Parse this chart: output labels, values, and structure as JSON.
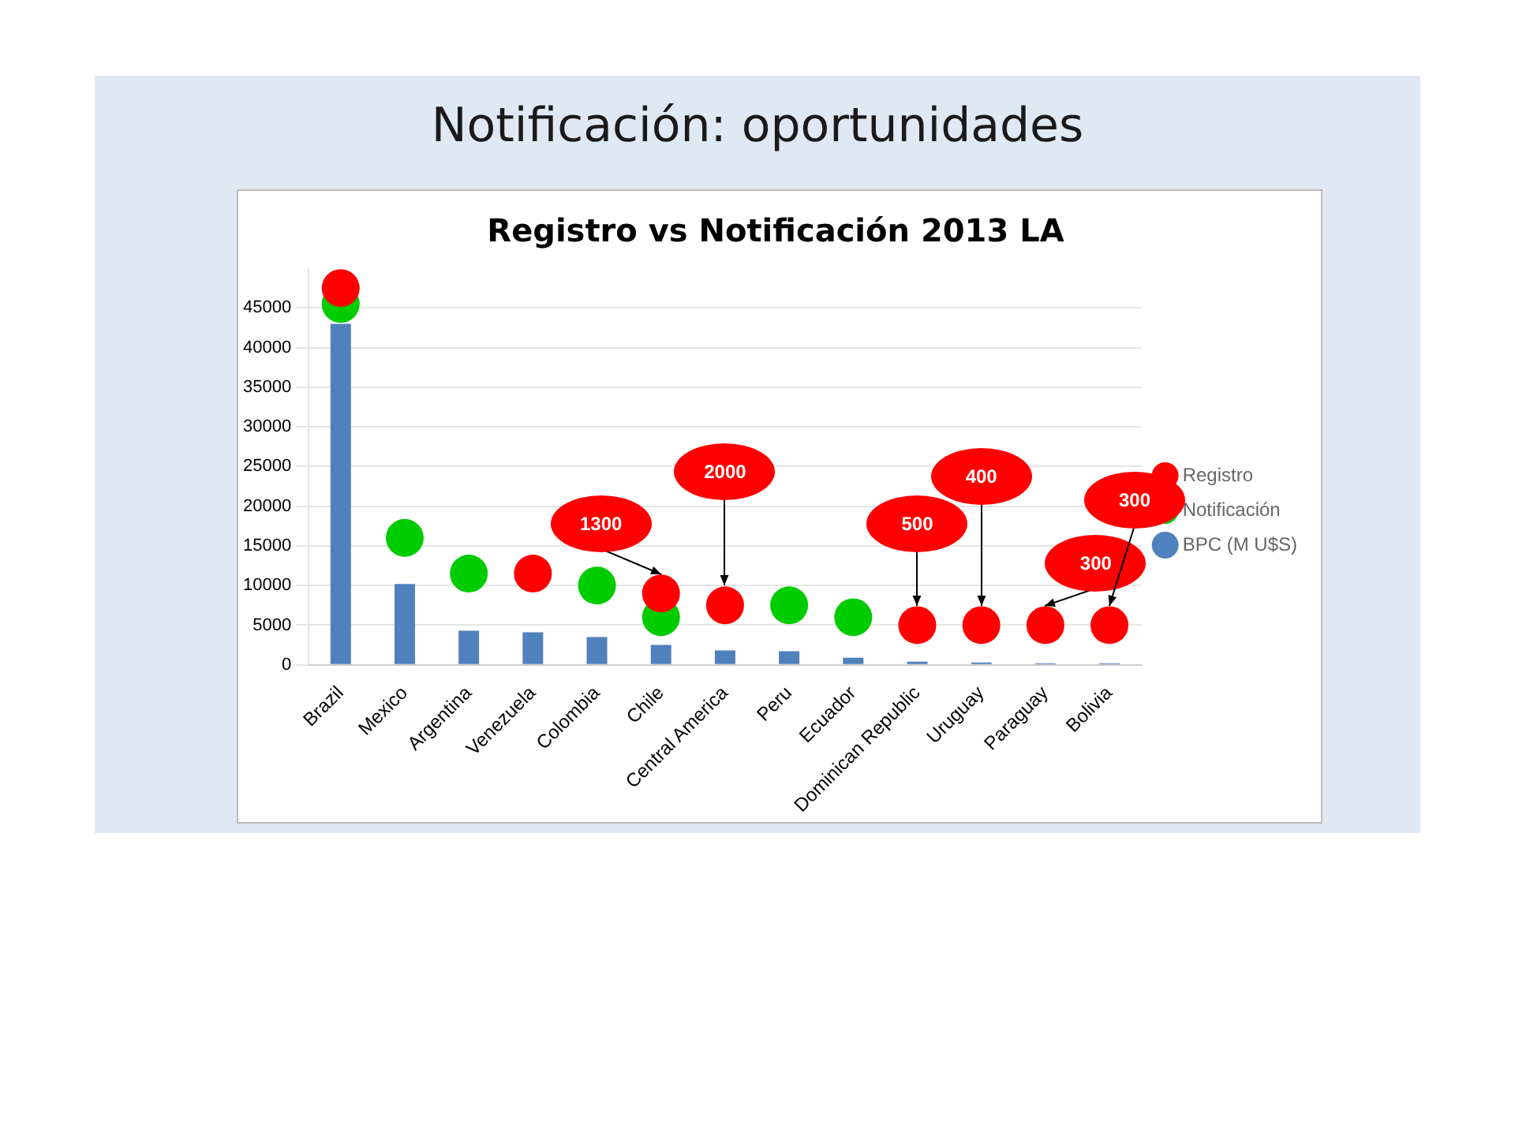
{
  "chart_data": {
    "type": "bar",
    "title": "Notificación: oportunidades",
    "subtitle": "Registro vs Notificación 2013 LA",
    "categories": [
      "Brazil",
      "Mexico",
      "Argentina",
      "Venezuela",
      "Colombia",
      "Chile",
      "Central America",
      "Peru",
      "Ecuador",
      "Dominican Republic",
      "Uruguay",
      "Paraguay",
      "Bolivia"
    ],
    "series": [
      {
        "name": "BPC (M U$S)",
        "color": "#4f81bd",
        "values": [
          43000,
          10200,
          4300,
          4100,
          3500,
          2500,
          1800,
          1700,
          900,
          400,
          300,
          200,
          200
        ]
      },
      {
        "name": "Registro",
        "type": "scatter",
        "color": "#ff0000",
        "values": [
          47500,
          null,
          null,
          11500,
          null,
          9000,
          7500,
          null,
          null,
          5000,
          5000,
          5000,
          5000
        ]
      },
      {
        "name": "Notificación",
        "type": "scatter",
        "color": "#00cc00",
        "values": [
          45500,
          16000,
          11500,
          null,
          10000,
          6000,
          null,
          7500,
          6000,
          null,
          null,
          null,
          null
        ]
      }
    ],
    "ylim": [
      0,
      50000
    ],
    "yticks": [
      0,
      5000,
      10000,
      15000,
      20000,
      25000,
      30000,
      35000,
      40000,
      45000
    ],
    "grid": "y",
    "legend": "right",
    "marker": "circle",
    "annotations": [
      {
        "text": "1300",
        "x": "Chile",
        "y": 11500
      },
      {
        "text": "2000",
        "x": "Central America",
        "y": 10000
      },
      {
        "text": "500",
        "x": "Dominican Republic",
        "y": 7500
      },
      {
        "text": "400",
        "x": "Uruguay",
        "y": 7500
      },
      {
        "text": "300",
        "x": "Paraguay",
        "y": 7500
      },
      {
        "text": "300",
        "x": "Bolivia",
        "y": 7500
      }
    ]
  }
}
